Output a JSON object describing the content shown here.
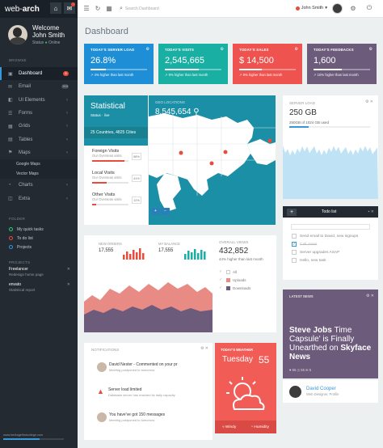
{
  "brand": {
    "name": "web",
    "suffix": "arch"
  },
  "user": {
    "welcome": "Welcome",
    "name": "John Smith",
    "status_label": "Status",
    "status": "Online",
    "top_name": "John Smith"
  },
  "sidebar": {
    "section_browse": "BROWSE",
    "items": [
      {
        "icon": "▣",
        "label": "Dashboard",
        "badge": "5"
      },
      {
        "icon": "✉",
        "label": "Email",
        "badge": "203"
      },
      {
        "icon": "◧",
        "label": "UI Elements"
      },
      {
        "icon": "☰",
        "label": "Forms"
      },
      {
        "icon": "▦",
        "label": "Grids"
      },
      {
        "icon": "▤",
        "label": "Tables"
      },
      {
        "icon": "⚑",
        "label": "Maps"
      }
    ],
    "sub_items": [
      "Google Maps",
      "Vector Maps"
    ],
    "items2": [
      {
        "icon": "◔",
        "label": "Charts"
      },
      {
        "icon": "◫",
        "label": "Extra"
      }
    ],
    "section_folder": "FOLDER",
    "folder": [
      "My quick tasks",
      "To do list",
      "Projects"
    ],
    "section_projects": "PROJECTS",
    "projects": [
      {
        "title": "Freelancer",
        "sub": "Redesign home page"
      },
      {
        "title": "envato",
        "sub": "Statistical report"
      }
    ],
    "footer": "www.heritagefirstcollege.com"
  },
  "topbar": {
    "search_placeholder": "Search Dashboard"
  },
  "page_title": "Dashboard",
  "stats": [
    {
      "label": "TODAY'S SERVER LOAD",
      "value": "26.8%",
      "note": "↗ 4% higher than last month",
      "color": "#1e8fd6",
      "fill": 0.27
    },
    {
      "label": "TODAY'S VISITS",
      "value": "2,545,665",
      "note": "↗ 9% higher than last month",
      "color": "#1aafa3",
      "fill": 0.6
    },
    {
      "label": "TODAY'S SALES",
      "value": "$ 14,500",
      "note": "↗ 9% higher than last month",
      "color": "#ef5350",
      "fill": 0.4
    },
    {
      "label": "TODAY'S FEEDBACKS",
      "value": "1,600",
      "note": "↗ 10% higher than last month",
      "color": "#6c5b7b",
      "fill": 0.5
    }
  ],
  "statistical": {
    "title": "Statistical",
    "sub": "Status · live",
    "countries": "25 Countries, 4825 Cities",
    "visits": [
      {
        "title": "Foreign Visits",
        "sub": "Our Overseas visits",
        "pct": "88%",
        "fill": 0.88
      },
      {
        "title": "Local Visits",
        "sub": "Our Overseas visits",
        "pct": "41%",
        "fill": 0.41
      },
      {
        "title": "Other Visits",
        "sub": "Our Overseas visits",
        "pct": "12%",
        "fill": 0.12
      }
    ]
  },
  "geo": {
    "label": "GEO LOCATIONS",
    "value": "8,545,654"
  },
  "server": {
    "label": "SERVER LOAD",
    "value": "250 GB",
    "sub": "250GB of 1024 GB used",
    "fill": 0.24
  },
  "mini": [
    {
      "label": "NEW ORDERS",
      "value": "17,555"
    },
    {
      "label": "MY BALANCE",
      "value": "17,555"
    }
  ],
  "views": {
    "label": "OVERALL VIEWS",
    "value": "432,852",
    "note": "44% higher than last month",
    "legend": [
      {
        "label": "All",
        "color": "#ffffff"
      },
      {
        "label": "Uploads",
        "color": "#e98b85"
      },
      {
        "label": "Downloads",
        "color": "#6c5b7b"
      }
    ]
  },
  "todo": {
    "title": "Todo list",
    "items": [
      {
        "text": "Send email to David, new signups",
        "done": false
      },
      {
        "text": "Call Jane!",
        "done": true
      },
      {
        "text": "Server upgrades ASAP",
        "done": false
      },
      {
        "text": "Hello, new task",
        "done": false
      }
    ]
  },
  "notifications": {
    "label": "NOTIFICATIONS",
    "items": [
      {
        "title": "David Nester - Commented on your pr",
        "sub": "Meeting postponed to tomorrow"
      },
      {
        "title": "Server load limited",
        "sub": "Database server has reached its daily capacity"
      },
      {
        "title": "You have've got 150 messages",
        "sub": "Meeting postponed to tomorrow"
      }
    ]
  },
  "weather": {
    "label": "TODAY'S WEATHER",
    "day": "Tuesday",
    "temp": "55",
    "windy": "Windy",
    "humidity": "Humidity"
  },
  "news": {
    "label": "LATEST NEWS",
    "head1": "Steve Jobs ",
    "head2": "Time Capsule' is Finally Unearthed on ",
    "head3": "Skyface News",
    "meta": "♥ 55 ◷ 55 ✉ 5"
  },
  "person": {
    "name": "David Cooper",
    "title": "Web Designer, Profile"
  }
}
